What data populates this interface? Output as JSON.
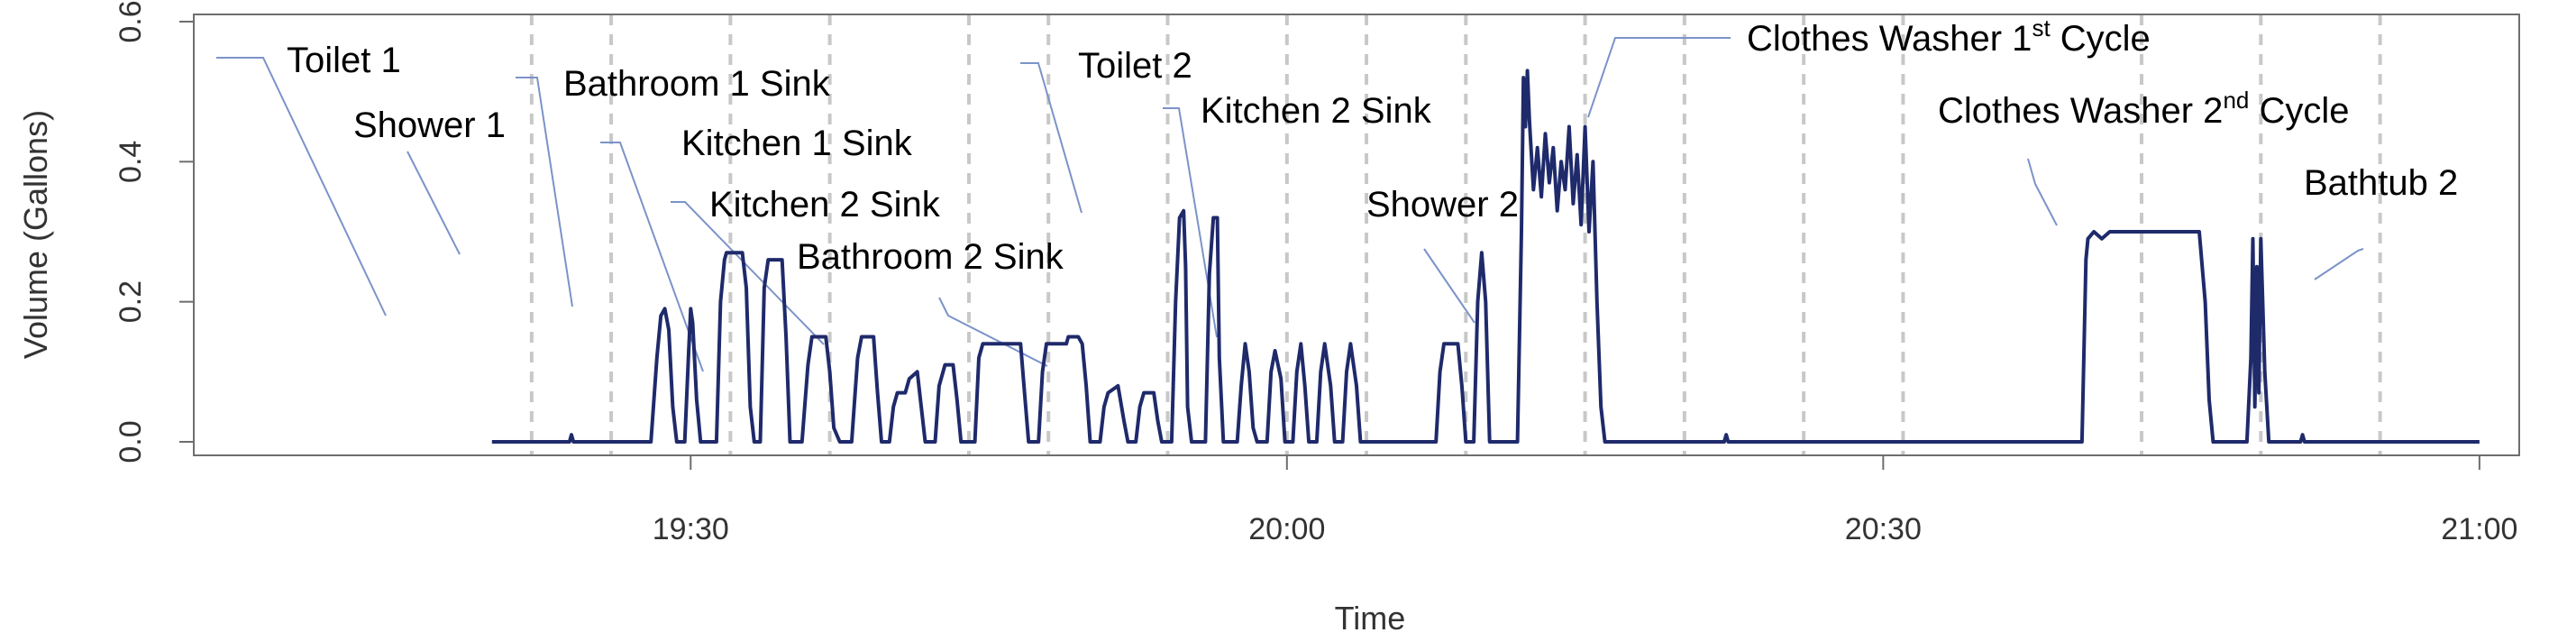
{
  "chart_data": {
    "type": "line",
    "title": "",
    "xlabel": "Time",
    "ylabel": "Volume (Gallons)",
    "x_ticks": [
      "19:30",
      "20:00",
      "20:30",
      "21:00"
    ],
    "y_ticks": [
      "0.0",
      "0.2",
      "0.4",
      "0.6"
    ],
    "xlim": [
      "19:05",
      "21:02"
    ],
    "ylim": [
      0,
      0.6
    ],
    "grid": "vertical dashed event separators",
    "series": [
      {
        "color": "#1f2a6b",
        "minute_start": "19:20",
        "points": [
          [
            0,
            0
          ],
          [
            3.9,
            0
          ],
          [
            4.0,
            0.01
          ],
          [
            4.1,
            0
          ],
          [
            8.0,
            0
          ],
          [
            8.3,
            0.12
          ],
          [
            8.5,
            0.18
          ],
          [
            8.7,
            0.19
          ],
          [
            8.9,
            0.16
          ],
          [
            9.1,
            0.05
          ],
          [
            9.3,
            0
          ],
          [
            9.7,
            0
          ],
          [
            9.9,
            0.13
          ],
          [
            10.0,
            0.19
          ],
          [
            10.1,
            0.17
          ],
          [
            10.3,
            0.06
          ],
          [
            10.5,
            0
          ],
          [
            11.3,
            0
          ],
          [
            11.5,
            0.2
          ],
          [
            11.7,
            0.26
          ],
          [
            11.8,
            0.27
          ],
          [
            12.6,
            0.27
          ],
          [
            12.8,
            0.22
          ],
          [
            13.0,
            0.05
          ],
          [
            13.2,
            0
          ],
          [
            13.5,
            0
          ],
          [
            13.7,
            0.22
          ],
          [
            13.9,
            0.26
          ],
          [
            14.6,
            0.26
          ],
          [
            14.8,
            0.15
          ],
          [
            15.0,
            0
          ],
          [
            15.6,
            0
          ],
          [
            15.9,
            0.11
          ],
          [
            16.1,
            0.15
          ],
          [
            16.8,
            0.15
          ],
          [
            17.0,
            0.1
          ],
          [
            17.2,
            0.02
          ],
          [
            17.5,
            0
          ],
          [
            18.1,
            0
          ],
          [
            18.4,
            0.12
          ],
          [
            18.6,
            0.15
          ],
          [
            19.2,
            0.15
          ],
          [
            19.4,
            0.07
          ],
          [
            19.6,
            0
          ],
          [
            20.0,
            0
          ],
          [
            20.2,
            0.05
          ],
          [
            20.4,
            0.07
          ],
          [
            20.8,
            0.07
          ],
          [
            21.0,
            0.09
          ],
          [
            21.4,
            0.1
          ],
          [
            21.6,
            0.05
          ],
          [
            21.8,
            0
          ],
          [
            22.3,
            0
          ],
          [
            22.5,
            0.08
          ],
          [
            22.8,
            0.11
          ],
          [
            23.2,
            0.11
          ],
          [
            23.4,
            0.06
          ],
          [
            23.6,
            0
          ],
          [
            24.3,
            0
          ],
          [
            24.5,
            0.12
          ],
          [
            24.7,
            0.14
          ],
          [
            26.6,
            0.14
          ],
          [
            26.8,
            0.07
          ],
          [
            27.0,
            0
          ],
          [
            27.5,
            0
          ],
          [
            27.7,
            0.1
          ],
          [
            27.9,
            0.14
          ],
          [
            28.9,
            0.14
          ],
          [
            29.0,
            0.15
          ],
          [
            29.5,
            0.15
          ],
          [
            29.7,
            0.14
          ],
          [
            29.9,
            0.08
          ],
          [
            30.1,
            0
          ],
          [
            30.6,
            0
          ],
          [
            30.8,
            0.05
          ],
          [
            31.0,
            0.07
          ],
          [
            31.5,
            0.08
          ],
          [
            31.8,
            0.03
          ],
          [
            32.0,
            0
          ],
          [
            32.4,
            0
          ],
          [
            32.6,
            0.05
          ],
          [
            32.8,
            0.07
          ],
          [
            33.3,
            0.07
          ],
          [
            33.5,
            0.03
          ],
          [
            33.7,
            0
          ],
          [
            34.2,
            0
          ],
          [
            34.4,
            0.2
          ],
          [
            34.6,
            0.32
          ],
          [
            34.8,
            0.33
          ],
          [
            34.9,
            0.25
          ],
          [
            35.0,
            0.05
          ],
          [
            35.2,
            0
          ],
          [
            35.9,
            0
          ],
          [
            36.1,
            0.24
          ],
          [
            36.3,
            0.32
          ],
          [
            36.5,
            0.32
          ],
          [
            36.6,
            0.12
          ],
          [
            36.8,
            0
          ],
          [
            37.5,
            0
          ],
          [
            37.7,
            0.08
          ],
          [
            37.9,
            0.14
          ],
          [
            38.1,
            0.1
          ],
          [
            38.3,
            0.02
          ],
          [
            38.5,
            0
          ],
          [
            39.0,
            0
          ],
          [
            39.2,
            0.1
          ],
          [
            39.4,
            0.13
          ],
          [
            39.7,
            0.09
          ],
          [
            39.9,
            0
          ],
          [
            40.3,
            0
          ],
          [
            40.5,
            0.1
          ],
          [
            40.7,
            0.14
          ],
          [
            40.9,
            0.08
          ],
          [
            41.1,
            0
          ],
          [
            41.5,
            0
          ],
          [
            41.7,
            0.1
          ],
          [
            41.9,
            0.14
          ],
          [
            42.2,
            0.08
          ],
          [
            42.4,
            0
          ],
          [
            42.8,
            0
          ],
          [
            43.0,
            0.1
          ],
          [
            43.2,
            0.14
          ],
          [
            43.5,
            0.08
          ],
          [
            43.7,
            0
          ],
          [
            47.5,
            0
          ],
          [
            47.7,
            0.1
          ],
          [
            47.9,
            0.14
          ],
          [
            48.6,
            0.14
          ],
          [
            48.8,
            0.08
          ],
          [
            49.0,
            0
          ],
          [
            49.4,
            0
          ],
          [
            49.6,
            0.2
          ],
          [
            49.8,
            0.27
          ],
          [
            50.0,
            0.2
          ],
          [
            50.2,
            0
          ],
          [
            51.6,
            0
          ],
          [
            51.8,
            0.3
          ],
          [
            51.9,
            0.52
          ],
          [
            52.0,
            0.45
          ],
          [
            52.1,
            0.53
          ],
          [
            52.2,
            0.46
          ],
          [
            52.4,
            0.36
          ],
          [
            52.6,
            0.42
          ],
          [
            52.8,
            0.35
          ],
          [
            53.0,
            0.44
          ],
          [
            53.2,
            0.37
          ],
          [
            53.4,
            0.42
          ],
          [
            53.6,
            0.33
          ],
          [
            53.8,
            0.4
          ],
          [
            54.0,
            0.36
          ],
          [
            54.2,
            0.45
          ],
          [
            54.4,
            0.34
          ],
          [
            54.6,
            0.41
          ],
          [
            54.8,
            0.31
          ],
          [
            55.0,
            0.45
          ],
          [
            55.2,
            0.3
          ],
          [
            55.4,
            0.4
          ],
          [
            55.6,
            0.2
          ],
          [
            55.8,
            0.05
          ],
          [
            56.0,
            0
          ],
          [
            62.0,
            0
          ],
          [
            62.1,
            0.01
          ],
          [
            62.2,
            0
          ],
          [
            80.0,
            0
          ],
          [
            80.2,
            0.26
          ],
          [
            80.3,
            0.29
          ],
          [
            80.6,
            0.3
          ],
          [
            81.0,
            0.29
          ],
          [
            81.4,
            0.3
          ],
          [
            82.0,
            0.3
          ],
          [
            82.4,
            0.3
          ],
          [
            85.9,
            0.3
          ],
          [
            86.2,
            0.2
          ],
          [
            86.4,
            0.06
          ],
          [
            86.6,
            0
          ],
          [
            88.3,
            0
          ],
          [
            88.5,
            0.12
          ],
          [
            88.6,
            0.29
          ],
          [
            88.7,
            0.05
          ],
          [
            88.8,
            0.25
          ],
          [
            88.9,
            0.07
          ],
          [
            89.0,
            0.29
          ],
          [
            89.2,
            0.1
          ],
          [
            89.4,
            0
          ],
          [
            91.0,
            0
          ],
          [
            91.1,
            0.01
          ],
          [
            91.2,
            0
          ],
          [
            100.0,
            0
          ]
        ]
      }
    ],
    "vertical_guides": [
      "19:22",
      "19:26",
      "19:32",
      "19:37",
      "19:44",
      "19:48",
      "19:54",
      "20:00",
      "20:04",
      "20:09",
      "20:15",
      "20:20",
      "20:26",
      "20:31",
      "20:43",
      "20:49",
      "20:55"
    ],
    "annotations": [
      {
        "text": "Toilet 1"
      },
      {
        "text": "Shower 1"
      },
      {
        "text": "Bathroom 1 Sink"
      },
      {
        "text": "Kitchen 1 Sink"
      },
      {
        "text": "Kitchen 2 Sink"
      },
      {
        "text": "Bathroom 2 Sink"
      },
      {
        "text": "Toilet 2"
      },
      {
        "text": "Kitchen 2 Sink"
      },
      {
        "text": "Shower 2"
      },
      {
        "text": "Clothes Washer 1",
        "sup": "st",
        "tail": " Cycle"
      },
      {
        "text": "Clothes Washer 2",
        "sup": "nd",
        "tail": "  Cycle"
      },
      {
        "text": "Bathtub 2"
      }
    ]
  }
}
